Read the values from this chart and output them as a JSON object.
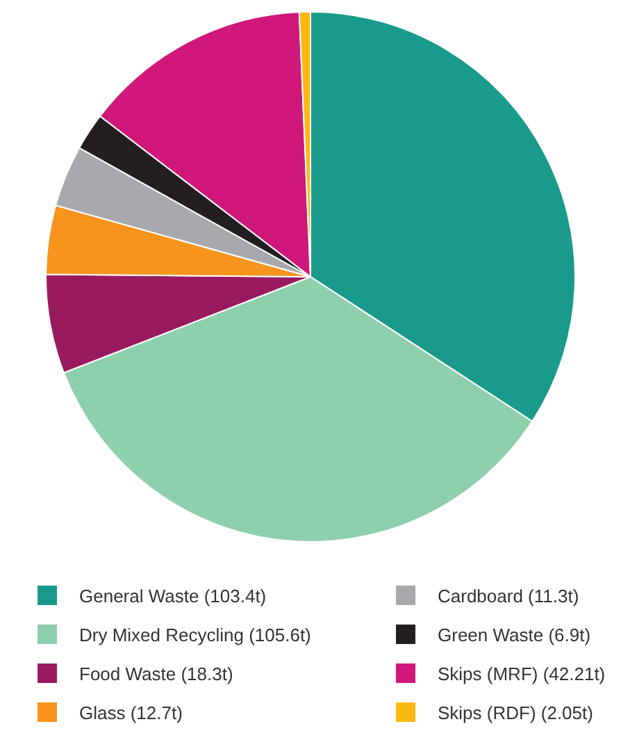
{
  "chart_data": {
    "type": "pie",
    "categories": [
      "General Waste (103.4t)",
      "Dry Mixed Recycling (105.6t)",
      "Food Waste (18.3t)",
      "Glass (12.7t)",
      "Cardboard (11.3t)",
      "Green Waste (6.9t)",
      "Skips (MRF) (42.21t)",
      "Skips (RDF) (2.05t)"
    ],
    "values": [
      103.4,
      105.6,
      18.3,
      12.7,
      11.3,
      6.9,
      42.21,
      2.05
    ],
    "colors": [
      "#1a9a8a",
      "#8ecfae",
      "#9a1a5e",
      "#f7941d",
      "#a7a9ac",
      "#231f20",
      "#d0187a",
      "#fdb913"
    ],
    "legend": "bottom"
  }
}
